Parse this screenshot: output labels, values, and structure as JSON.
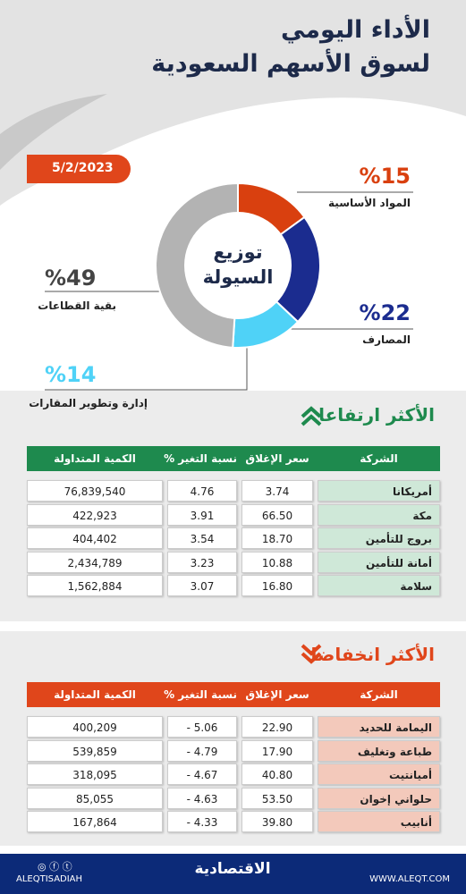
{
  "header": {
    "title_line1": "الأداء اليومي",
    "title_line2": "لسوق الأسهم السعودية",
    "date": "5/2/2023"
  },
  "chart_data": {
    "type": "pie",
    "title": "توزيع السيولة",
    "categories": [
      "المواد الأساسية",
      "المصارف",
      "إدارة وتطوير المقارات",
      "بقية القطاعات"
    ],
    "values": [
      15,
      22,
      14,
      49
    ],
    "value_labels": [
      "%15",
      "%22",
      "%14",
      "%49"
    ],
    "colors": [
      "#d9400f",
      "#1b2c8f",
      "#4fd2f7",
      "#b3b3b3"
    ]
  },
  "gainers": {
    "title": "الأكثر ارتفاعا",
    "columns": [
      "الشركة",
      "سعر الإغلاق",
      "نسبة التغير %",
      "الكمية المتداولة"
    ],
    "rows": [
      [
        "أمريكانا",
        "3.74",
        "4.76",
        "76,839,540"
      ],
      [
        "مكة",
        "66.50",
        "3.91",
        "422,923"
      ],
      [
        "بروج للتأمين",
        "18.70",
        "3.54",
        "404,402"
      ],
      [
        "أمانة للتأمين",
        "10.88",
        "3.23",
        "2,434,789"
      ],
      [
        "سلامة",
        "16.80",
        "3.07",
        "1,562,884"
      ]
    ]
  },
  "losers": {
    "title": "الأكثر انخفاضا",
    "columns": [
      "الشركة",
      "سعر الإغلاق",
      "نسبة التغير %",
      "الكمية المتداولة"
    ],
    "rows": [
      [
        "اليمامة للحديد",
        "22.90",
        "- 5.06",
        "400,209"
      ],
      [
        "طباعة وتغليف",
        "17.90",
        "- 4.79",
        "539,859"
      ],
      [
        "أميانتيت",
        "40.80",
        "- 4.67",
        "318,095"
      ],
      [
        "حلواني إخوان",
        "53.50",
        "- 4.63",
        "85,055"
      ],
      [
        "أنابيب",
        "39.80",
        "- 4.33",
        "167,864"
      ]
    ]
  },
  "footer": {
    "handle": "ALEQTISADIAH",
    "logo": "الاقتصادية",
    "site": "WWW.ALEQT.COM"
  }
}
